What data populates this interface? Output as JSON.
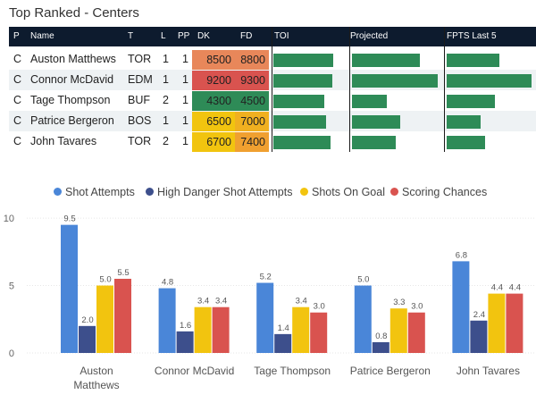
{
  "title": "Top Ranked - Centers",
  "table": {
    "headers": [
      "P",
      "Name",
      "T",
      "L",
      "PP",
      "DK",
      "FD",
      "TOI",
      "Projected",
      "FPTS Last 5"
    ],
    "rows": [
      {
        "p": "C",
        "name": "Auston Matthews",
        "team": "TOR",
        "line": "1",
        "pp": "1",
        "dk": "8500",
        "fd": "8800",
        "dk_color": "#e8875a",
        "fd_color": "#e8875a",
        "toi": 0.82,
        "projected": 0.78,
        "fpts": 0.62
      },
      {
        "p": "C",
        "name": "Connor McDavid",
        "team": "EDM",
        "line": "1",
        "pp": "1",
        "dk": "9200",
        "fd": "9300",
        "dk_color": "#d9534f",
        "fd_color": "#d9534f",
        "toi": 0.8,
        "projected": 0.98,
        "fpts": 1.0
      },
      {
        "p": "C",
        "name": "Tage Thompson",
        "team": "BUF",
        "line": "2",
        "pp": "1",
        "dk": "4300",
        "fd": "4500",
        "dk_color": "#2e8b57",
        "fd_color": "#2e8b57",
        "toi": 0.7,
        "projected": 0.4,
        "fpts": 0.57
      },
      {
        "p": "C",
        "name": "Patrice Bergeron",
        "team": "BOS",
        "line": "1",
        "pp": "1",
        "dk": "6500",
        "fd": "7000",
        "dk_color": "#f1c40f",
        "fd_color": "#f0b020",
        "toi": 0.72,
        "projected": 0.55,
        "fpts": 0.4
      },
      {
        "p": "C",
        "name": "John Tavares",
        "team": "TOR",
        "line": "2",
        "pp": "1",
        "dk": "6700",
        "fd": "7400",
        "dk_color": "#f1c40f",
        "fd_color": "#f0a030",
        "toi": 0.78,
        "projected": 0.5,
        "fpts": 0.45
      }
    ]
  },
  "chart_data": {
    "type": "bar",
    "categories": [
      "Auston Matthews",
      "Connor McDavid",
      "Tage Thompson",
      "Patrice Bergeron",
      "John Tavares"
    ],
    "series": [
      {
        "name": "Shot Attempts",
        "color": "#4a86d8",
        "values": [
          9.5,
          4.8,
          5.2,
          5.0,
          6.8
        ]
      },
      {
        "name": "High Danger Shot Attempts",
        "color": "#3d4f8c",
        "values": [
          2.0,
          1.6,
          1.4,
          0.8,
          2.4
        ]
      },
      {
        "name": "Shots On Goal",
        "color": "#f2c40f",
        "values": [
          5.0,
          3.4,
          3.4,
          3.3,
          4.4
        ]
      },
      {
        "name": "Scoring Chances",
        "color": "#d9534f",
        "values": [
          5.5,
          3.4,
          3.0,
          3.0,
          4.4
        ]
      }
    ],
    "yticks": [
      0,
      5,
      10
    ],
    "ylim": [
      0,
      11
    ],
    "legend_position": "top",
    "grid": true
  }
}
